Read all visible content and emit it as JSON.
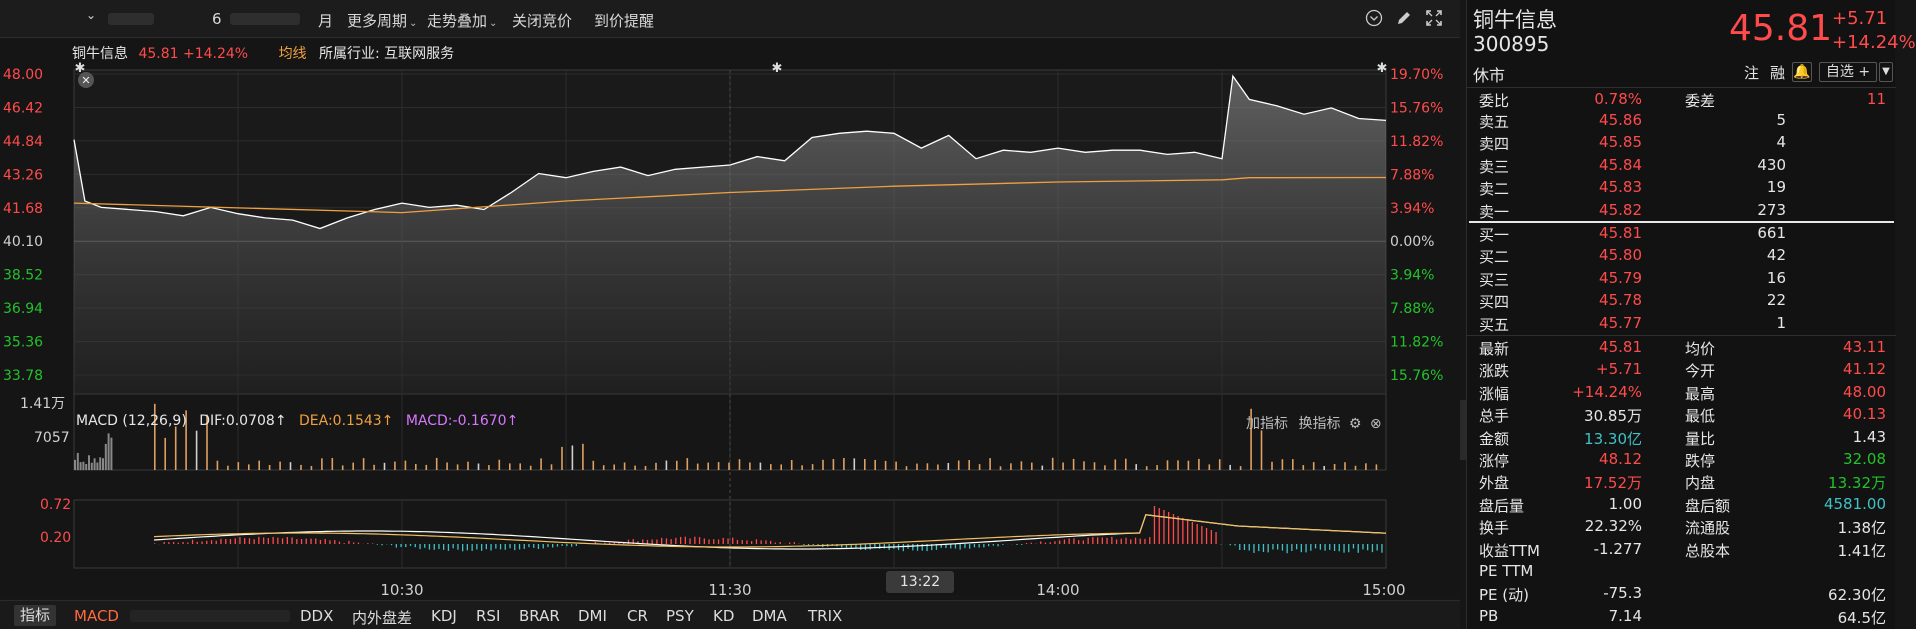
{
  "toolbar": {
    "period_month": "月",
    "more_periods": "更多周期",
    "trend_overlay": "走势叠加",
    "close_auction": "关闭竞价",
    "price_alert": "到价提醒",
    "blurred_digit": "6"
  },
  "chart": {
    "stock_name": "铜牛信息",
    "price_change": "45.81 +14.24%",
    "avg_line_label": "均线",
    "industry": "所属行业: 互联网服务",
    "price_ticks": [
      "48.00",
      "46.42",
      "44.84",
      "43.26",
      "41.68",
      "40.10",
      "38.52",
      "36.94",
      "35.36",
      "33.78"
    ],
    "pct_ticks": [
      "19.70%",
      "15.76%",
      "11.82%",
      "7.88%",
      "3.94%",
      "0.00%",
      "3.94%",
      "7.88%",
      "11.82%",
      "15.76%"
    ],
    "volume_ticks": [
      "1.41万",
      "7057"
    ],
    "macd_title": "MACD (12,26,9)",
    "dif": "DIF:0.0708↑",
    "dea": "DEA:0.1543↑",
    "macd": "MACD:-0.1670↑",
    "add_indicator": "加指标",
    "switch_indicator": "换指标",
    "macd_ticks": [
      "0.72",
      "0.20"
    ],
    "time_ticks": [
      "10:30",
      "11:30",
      "14:00",
      "15:00"
    ],
    "crosshair_time": "13:22",
    "colors": {
      "up": "#ff4b4b",
      "down": "#22c22a",
      "avg": "#f0a040",
      "price": "#ffffff"
    }
  },
  "chart_data": {
    "type": "line",
    "ylim": [
      33.78,
      48.0
    ],
    "prev_close": 40.1,
    "price_series": [
      {
        "t": "09:30",
        "v": 44.9
      },
      {
        "t": "09:32",
        "v": 42.0
      },
      {
        "t": "09:35",
        "v": 41.7
      },
      {
        "t": "09:40",
        "v": 41.6
      },
      {
        "t": "09:45",
        "v": 41.5
      },
      {
        "t": "09:50",
        "v": 41.3
      },
      {
        "t": "09:55",
        "v": 41.7
      },
      {
        "t": "10:00",
        "v": 41.4
      },
      {
        "t": "10:05",
        "v": 41.2
      },
      {
        "t": "10:10",
        "v": 41.1
      },
      {
        "t": "10:15",
        "v": 40.7
      },
      {
        "t": "10:20",
        "v": 41.2
      },
      {
        "t": "10:25",
        "v": 41.6
      },
      {
        "t": "10:30",
        "v": 41.9
      },
      {
        "t": "10:35",
        "v": 41.7
      },
      {
        "t": "10:40",
        "v": 41.8
      },
      {
        "t": "10:45",
        "v": 41.6
      },
      {
        "t": "10:50",
        "v": 42.4
      },
      {
        "t": "10:55",
        "v": 43.3
      },
      {
        "t": "11:00",
        "v": 43.1
      },
      {
        "t": "11:05",
        "v": 43.4
      },
      {
        "t": "11:10",
        "v": 43.6
      },
      {
        "t": "11:15",
        "v": 43.2
      },
      {
        "t": "11:20",
        "v": 43.5
      },
      {
        "t": "11:25",
        "v": 43.6
      },
      {
        "t": "11:30",
        "v": 43.7
      },
      {
        "t": "13:05",
        "v": 44.1
      },
      {
        "t": "13:10",
        "v": 43.9
      },
      {
        "t": "13:15",
        "v": 45.0
      },
      {
        "t": "13:20",
        "v": 45.2
      },
      {
        "t": "13:25",
        "v": 45.3
      },
      {
        "t": "13:30",
        "v": 45.2
      },
      {
        "t": "13:35",
        "v": 44.5
      },
      {
        "t": "13:40",
        "v": 45.1
      },
      {
        "t": "13:45",
        "v": 44.0
      },
      {
        "t": "13:50",
        "v": 44.4
      },
      {
        "t": "13:55",
        "v": 44.3
      },
      {
        "t": "14:00",
        "v": 44.5
      },
      {
        "t": "14:05",
        "v": 44.3
      },
      {
        "t": "14:10",
        "v": 44.4
      },
      {
        "t": "14:15",
        "v": 44.4
      },
      {
        "t": "14:20",
        "v": 44.2
      },
      {
        "t": "14:25",
        "v": 44.3
      },
      {
        "t": "14:30",
        "v": 44.0
      },
      {
        "t": "14:32",
        "v": 47.9
      },
      {
        "t": "14:35",
        "v": 46.8
      },
      {
        "t": "14:40",
        "v": 46.5
      },
      {
        "t": "14:45",
        "v": 46.1
      },
      {
        "t": "14:50",
        "v": 46.4
      },
      {
        "t": "14:55",
        "v": 45.9
      },
      {
        "t": "15:00",
        "v": 45.81
      }
    ],
    "avg_series": [
      {
        "t": "09:30",
        "v": 41.9
      },
      {
        "t": "10:30",
        "v": 41.45
      },
      {
        "t": "11:00",
        "v": 42.0
      },
      {
        "t": "11:30",
        "v": 42.4
      },
      {
        "t": "13:30",
        "v": 42.7
      },
      {
        "t": "14:00",
        "v": 42.9
      },
      {
        "t": "14:30",
        "v": 43.0
      },
      {
        "t": "14:35",
        "v": 43.1
      },
      {
        "t": "15:00",
        "v": 43.11
      }
    ],
    "volume_max": 14100
  },
  "quote": {
    "name": "铜牛信息",
    "code": "300895",
    "status": "休市",
    "price": "45.81",
    "change": "+5.71",
    "change_pct": "+14.24%",
    "note_label": "注",
    "margin_label": "融",
    "watchlist": "自选 +",
    "committee_ratio_label": "委比",
    "committee_ratio": "0.78%",
    "committee_diff_label": "委差",
    "committee_diff": "11",
    "asks": [
      {
        "label": "卖五",
        "price": "45.86",
        "vol": "5"
      },
      {
        "label": "卖四",
        "price": "45.85",
        "vol": "4"
      },
      {
        "label": "卖三",
        "price": "45.84",
        "vol": "430"
      },
      {
        "label": "卖二",
        "price": "45.83",
        "vol": "19"
      },
      {
        "label": "卖一",
        "price": "45.82",
        "vol": "273"
      }
    ],
    "bids": [
      {
        "label": "买一",
        "price": "45.81",
        "vol": "661"
      },
      {
        "label": "买二",
        "price": "45.80",
        "vol": "42"
      },
      {
        "label": "买三",
        "price": "45.79",
        "vol": "16"
      },
      {
        "label": "买四",
        "price": "45.78",
        "vol": "22"
      },
      {
        "label": "买五",
        "price": "45.77",
        "vol": "1"
      }
    ],
    "stats": [
      {
        "l1": "最新",
        "v1": "45.81",
        "c1": "red",
        "l2": "均价",
        "v2": "43.11",
        "c2": "red"
      },
      {
        "l1": "涨跌",
        "v1": "+5.71",
        "c1": "red",
        "l2": "今开",
        "v2": "41.12",
        "c2": "red"
      },
      {
        "l1": "涨幅",
        "v1": "+14.24%",
        "c1": "red",
        "l2": "最高",
        "v2": "48.00",
        "c2": "red"
      },
      {
        "l1": "总手",
        "v1": "30.85万",
        "c1": "white",
        "l2": "最低",
        "v2": "40.13",
        "c2": "red"
      },
      {
        "l1": "金额",
        "v1": "13.30亿",
        "c1": "cyan",
        "l2": "量比",
        "v2": "1.43",
        "c2": "white"
      },
      {
        "l1": "涨停",
        "v1": "48.12",
        "c1": "red",
        "l2": "跌停",
        "v2": "32.08",
        "c2": "green"
      },
      {
        "l1": "外盘",
        "v1": "17.52万",
        "c1": "red",
        "l2": "内盘",
        "v2": "13.32万",
        "c2": "green"
      },
      {
        "l1": "盘后量",
        "v1": "1.00",
        "c1": "white",
        "l2": "盘后额",
        "v2": "4581.00",
        "c2": "cyan"
      },
      {
        "l1": "换手",
        "v1": "22.32%",
        "c1": "white",
        "l2": "流通股",
        "v2": "1.38亿",
        "c2": "white"
      },
      {
        "l1": "收益TTM",
        "v1": "-1.277",
        "c1": "white",
        "l2": "总股本",
        "v2": "1.41亿",
        "c2": "white"
      },
      {
        "l1": "PE TTM",
        "v1": "",
        "c1": "white",
        "l2": "",
        "v2": "",
        "c2": "white"
      },
      {
        "l1": "PE (动)",
        "v1": "-75.3",
        "c1": "white",
        "l2": "",
        "v2": "62.30亿",
        "c2": "white"
      },
      {
        "l1": "PB",
        "v1": "7.14",
        "c1": "white",
        "l2": "",
        "v2": "64.5亿",
        "c2": "white"
      }
    ]
  },
  "bottom_tabs": [
    "指标",
    "MACD",
    "DDX",
    "内外盘差",
    "KDJ",
    "RSI",
    "BRAR",
    "DMI",
    "CR",
    "PSY",
    "KD",
    "DMA",
    "TRIX"
  ]
}
